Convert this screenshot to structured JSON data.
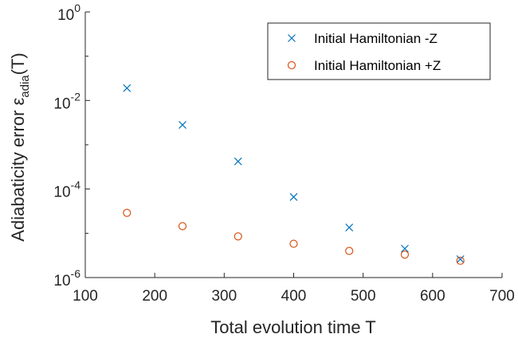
{
  "chart_data": {
    "type": "scatter",
    "title": "",
    "xlabel": "Total evolution time T",
    "ylabel": {
      "base": "Adiabaticity error ε",
      "subscript": "adia",
      "suffix": "(T)"
    },
    "x_scale": "linear",
    "y_scale": "log",
    "xlim": [
      100,
      700
    ],
    "ylim": [
      1e-06,
      1
    ],
    "x_ticks": [
      100,
      200,
      300,
      400,
      500,
      600,
      700
    ],
    "x_tick_labels": [
      "100",
      "200",
      "300",
      "400",
      "500",
      "600",
      "700"
    ],
    "y_ticks": [
      {
        "value": 1e-06,
        "base": "10",
        "exp": "-6"
      },
      {
        "value": 0.0001,
        "base": "10",
        "exp": "-4"
      },
      {
        "value": 0.01,
        "base": "10",
        "exp": "-2"
      },
      {
        "value": 1,
        "base": "10",
        "exp": "0"
      }
    ],
    "grid": false,
    "legend_position": "top-right",
    "series": [
      {
        "name": "Initial Hamiltonian -Z",
        "marker": "x",
        "color": "#0072BD",
        "x": [
          160,
          240,
          320,
          400,
          480,
          560,
          640
        ],
        "y": [
          0.019,
          0.0028,
          0.00042,
          6.6e-05,
          1.35e-05,
          4.5e-06,
          2.6e-06
        ]
      },
      {
        "name": "Initial Hamiltonian +Z",
        "marker": "o",
        "color": "#D95319",
        "x": [
          160,
          240,
          320,
          400,
          480,
          560,
          640
        ],
        "y": [
          2.9e-05,
          1.45e-05,
          8.5e-06,
          5.8e-06,
          4e-06,
          3.3e-06,
          2.4e-06
        ]
      }
    ]
  }
}
